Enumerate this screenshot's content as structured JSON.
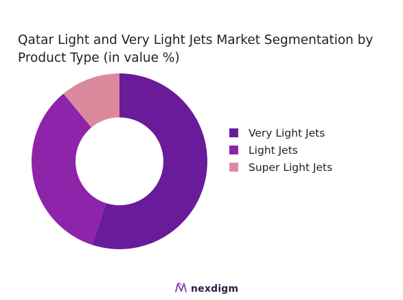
{
  "chart_data": {
    "type": "pie",
    "donut": true,
    "title": "Qatar Light and Very Light Jets Market Segmentation by Product Type (in value %)",
    "categories": [
      "Very Light Jets",
      "Light Jets",
      "Super Light Jets"
    ],
    "values": [
      55,
      34,
      11
    ],
    "colors": [
      "#6a1b9a",
      "#8e24aa",
      "#db8a9d"
    ],
    "legend_position": "right"
  },
  "brand": {
    "name": "nexdigm",
    "icon": "nexdigm-logo-icon"
  }
}
